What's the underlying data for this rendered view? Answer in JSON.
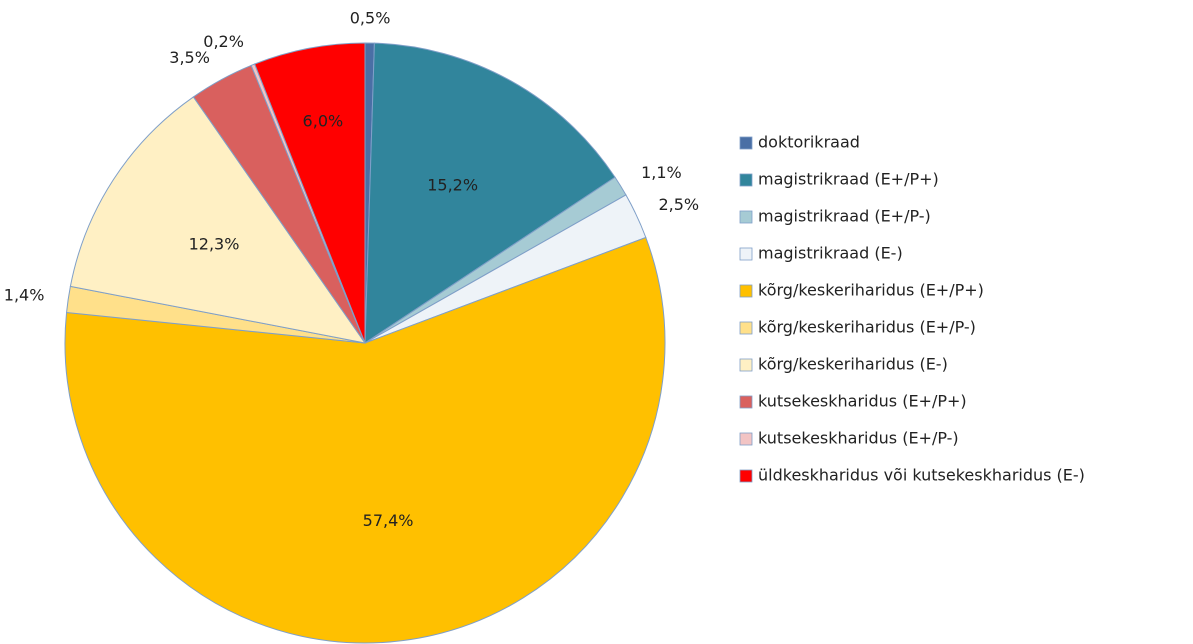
{
  "chart_data": {
    "type": "pie",
    "categories": [
      "doktorikraad",
      "magistrikraad (E+/P+)",
      "magistrikraad (E+/P-)",
      "magistrikraad (E-)",
      "kõrg/keskeriharidus (E+/P+)",
      "kõrg/keskeriharidus (E+/P-)",
      "kõrg/keskeriharidus (E-)",
      "kutsekeskharidus (E+/P+)",
      "kutsekeskharidus (E+/P-)",
      "üldkeskharidus või kutsekeskharidus (E-)"
    ],
    "values": [
      0.5,
      15.2,
      1.1,
      2.5,
      57.4,
      1.4,
      12.3,
      3.5,
      0.2,
      6.0
    ],
    "value_labels": [
      "0,5%",
      "15,2%",
      "1,1%",
      "2,5%",
      "57,4%",
      "1,4%",
      "12,3%",
      "3,5%",
      "0,2%",
      "6,0%"
    ],
    "colors": [
      "#4a6fa5",
      "#31859c",
      "#a6cbd4",
      "#eef3f8",
      "#ffc000",
      "#ffe08a",
      "#fff0c4",
      "#d9605e",
      "#f2c4c4",
      "#ff0000"
    ],
    "legend": "right"
  }
}
